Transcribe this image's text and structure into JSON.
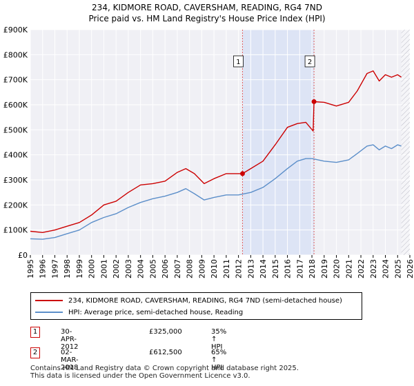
{
  "chart_data": {
    "type": "line",
    "title": "234, KIDMORE ROAD, CAVERSHAM, READING, RG4 7ND",
    "subtitle": "Price paid vs. HM Land Registry's House Price Index (HPI)",
    "xlabel": "",
    "ylabel": "",
    "xlim": [
      1995,
      2026
    ],
    "ylim": [
      0,
      900000
    ],
    "grid": true,
    "x_ticks": [
      1995,
      1996,
      1997,
      1998,
      1999,
      2000,
      2001,
      2002,
      2003,
      2004,
      2005,
      2006,
      2007,
      2008,
      2009,
      2010,
      2011,
      2012,
      2013,
      2014,
      2015,
      2016,
      2017,
      2018,
      2019,
      2020,
      2021,
      2022,
      2023,
      2024,
      2025,
      2026
    ],
    "y_ticks": [
      {
        "value": 0,
        "label": "£0"
      },
      {
        "value": 100000,
        "label": "£100K"
      },
      {
        "value": 200000,
        "label": "£200K"
      },
      {
        "value": 300000,
        "label": "£300K"
      },
      {
        "value": 400000,
        "label": "£400K"
      },
      {
        "value": 500000,
        "label": "£500K"
      },
      {
        "value": 600000,
        "label": "£600K"
      },
      {
        "value": 700000,
        "label": "£700K"
      },
      {
        "value": 800000,
        "label": "£800K"
      },
      {
        "value": 900000,
        "label": "£900K"
      }
    ],
    "series": [
      {
        "name": "234, KIDMORE ROAD, CAVERSHAM, READING, RG4 7ND (semi-detached house)",
        "color": "#cc0000",
        "x": [
          1995,
          1996,
          1997,
          1998,
          1999,
          2000,
          2001,
          2002,
          2003,
          2004,
          2005,
          2006,
          2007,
          2007.7,
          2008.4,
          2009.2,
          2010,
          2011,
          2012.33,
          2013,
          2014,
          2015,
          2016,
          2016.8,
          2017.5,
          2018.1,
          2018.17,
          2019,
          2020,
          2021,
          2021.7,
          2022.5,
          2023,
          2023.5,
          2024,
          2024.5,
          2025,
          2025.3
        ],
        "y": [
          95000,
          90000,
          100000,
          115000,
          130000,
          160000,
          200000,
          215000,
          250000,
          280000,
          285000,
          295000,
          330000,
          345000,
          325000,
          285000,
          305000,
          325000,
          325000,
          345000,
          375000,
          440000,
          510000,
          525000,
          530000,
          495000,
          612500,
          610000,
          595000,
          610000,
          655000,
          725000,
          735000,
          695000,
          720000,
          710000,
          720000,
          710000
        ]
      },
      {
        "name": "HPI: Average price, semi-detached house, Reading",
        "color": "#5b8ec9",
        "x": [
          1995,
          1996,
          1997,
          1998,
          1999,
          2000,
          2001,
          2002,
          2003,
          2004,
          2005,
          2006,
          2007,
          2007.7,
          2008.4,
          2009.2,
          2010,
          2011,
          2012,
          2013,
          2014,
          2015,
          2016,
          2016.8,
          2017.5,
          2018,
          2019,
          2020,
          2021,
          2021.7,
          2022.5,
          2023,
          2023.5,
          2024,
          2024.5,
          2025,
          2025.3
        ],
        "y": [
          65000,
          63000,
          70000,
          85000,
          100000,
          130000,
          150000,
          165000,
          190000,
          210000,
          225000,
          235000,
          250000,
          265000,
          245000,
          220000,
          230000,
          240000,
          240000,
          250000,
          270000,
          305000,
          345000,
          375000,
          385000,
          385000,
          375000,
          370000,
          380000,
          405000,
          435000,
          440000,
          420000,
          435000,
          425000,
          440000,
          435000
        ]
      }
    ],
    "annotations": [
      {
        "label": "1",
        "x": 2012.33,
        "y": 325000
      },
      {
        "label": "2",
        "x": 2018.17,
        "y": 612500
      }
    ]
  },
  "legend": {
    "items": [
      {
        "label": "234, KIDMORE ROAD, CAVERSHAM, READING, RG4 7ND (semi-detached house)",
        "color": "#cc0000"
      },
      {
        "label": "HPI: Average price, semi-detached house, Reading",
        "color": "#5b8ec9"
      }
    ]
  },
  "transactions": [
    {
      "num": "1",
      "date": "30-APR-2012",
      "price": "£325,000",
      "hpi": "35% ↑ HPI"
    },
    {
      "num": "2",
      "date": "02-MAR-2018",
      "price": "£612,500",
      "hpi": "65% ↑ HPI"
    }
  ],
  "footer": {
    "line1": "Contains HM Land Registry data © Crown copyright and database right 2025.",
    "line2": "This data is licensed under the Open Government Licence v3.0."
  }
}
